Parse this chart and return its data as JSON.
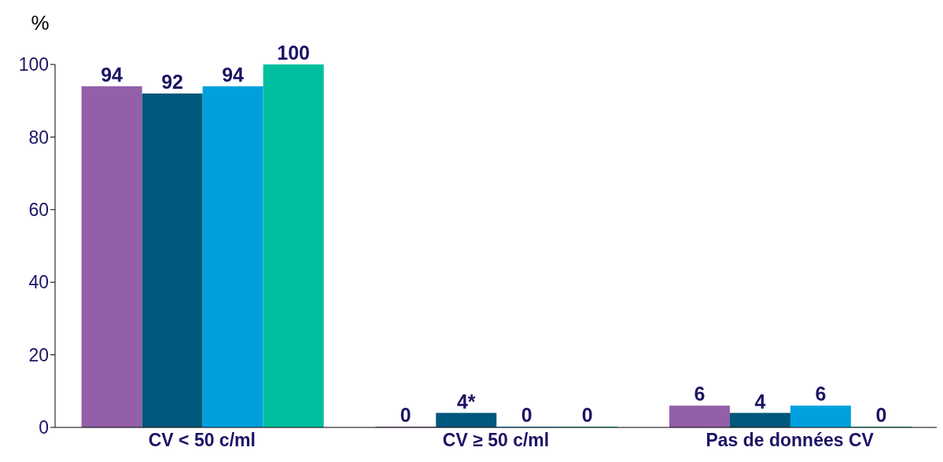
{
  "chart_data": {
    "type": "bar",
    "ylabel": "%",
    "categories": [
      "CV < 50 c/ml",
      "CV ≥ 50 c/ml",
      "Pas de données CV"
    ],
    "series": [
      {
        "color": "#935fa8",
        "values": [
          94,
          0,
          6
        ],
        "value_labels": [
          "94",
          "0",
          "6"
        ]
      },
      {
        "color": "#00587c",
        "values": [
          92,
          4,
          4
        ],
        "value_labels": [
          "92",
          "4*",
          "4"
        ]
      },
      {
        "color": "#00a0df",
        "values": [
          94,
          0,
          6
        ],
        "value_labels": [
          "94",
          "0",
          "6"
        ]
      },
      {
        "color": "#00bf9f",
        "values": [
          100,
          0,
          0
        ],
        "value_labels": [
          "100",
          "0",
          "0"
        ]
      }
    ],
    "ylim": [
      0,
      100
    ],
    "yticks": [
      0,
      20,
      40,
      60,
      80,
      100
    ],
    "grid": false,
    "legend": false
  }
}
